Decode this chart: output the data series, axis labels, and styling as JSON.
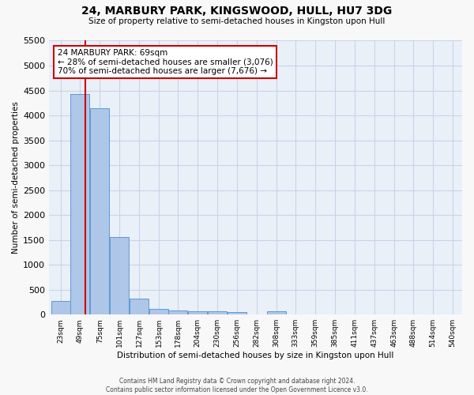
{
  "title": "24, MARBURY PARK, KINGSWOOD, HULL, HU7 3DG",
  "subtitle": "Size of property relative to semi-detached houses in Kingston upon Hull",
  "xlabel": "Distribution of semi-detached houses by size in Kingston upon Hull",
  "ylabel": "Number of semi-detached properties",
  "footer1": "Contains HM Land Registry data © Crown copyright and database right 2024.",
  "footer2": "Contains public sector information licensed under the Open Government Licence v3.0.",
  "property_label": "24 MARBURY PARK: 69sqm",
  "pct_smaller": 28,
  "count_smaller": 3076,
  "pct_larger": 70,
  "count_larger": 7676,
  "bin_labels": [
    "23sqm",
    "49sqm",
    "75sqm",
    "101sqm",
    "127sqm",
    "153sqm",
    "178sqm",
    "204sqm",
    "230sqm",
    "256sqm",
    "282sqm",
    "308sqm",
    "333sqm",
    "359sqm",
    "385sqm",
    "411sqm",
    "437sqm",
    "463sqm",
    "488sqm",
    "514sqm",
    "540sqm"
  ],
  "bin_edges": [
    23,
    49,
    75,
    101,
    127,
    153,
    178,
    204,
    230,
    256,
    282,
    308,
    333,
    359,
    385,
    411,
    437,
    463,
    488,
    514,
    540
  ],
  "bar_heights": [
    280,
    4430,
    4150,
    1560,
    320,
    120,
    80,
    65,
    60,
    50,
    0,
    60,
    0,
    0,
    0,
    0,
    0,
    0,
    0,
    0,
    0
  ],
  "bar_color": "#aec6e8",
  "bar_edge_color": "#5b9bd5",
  "red_line_x": 69,
  "ylim": [
    0,
    5500
  ],
  "yticks": [
    0,
    500,
    1000,
    1500,
    2000,
    2500,
    3000,
    3500,
    4000,
    4500,
    5000,
    5500
  ],
  "annotation_box_color": "#ffffff",
  "annotation_box_edge": "#cc0000",
  "red_line_color": "#cc0000",
  "grid_color": "#c8d4e8",
  "bg_color": "#eaf0f8",
  "fig_bg_color": "#f8f8f8"
}
